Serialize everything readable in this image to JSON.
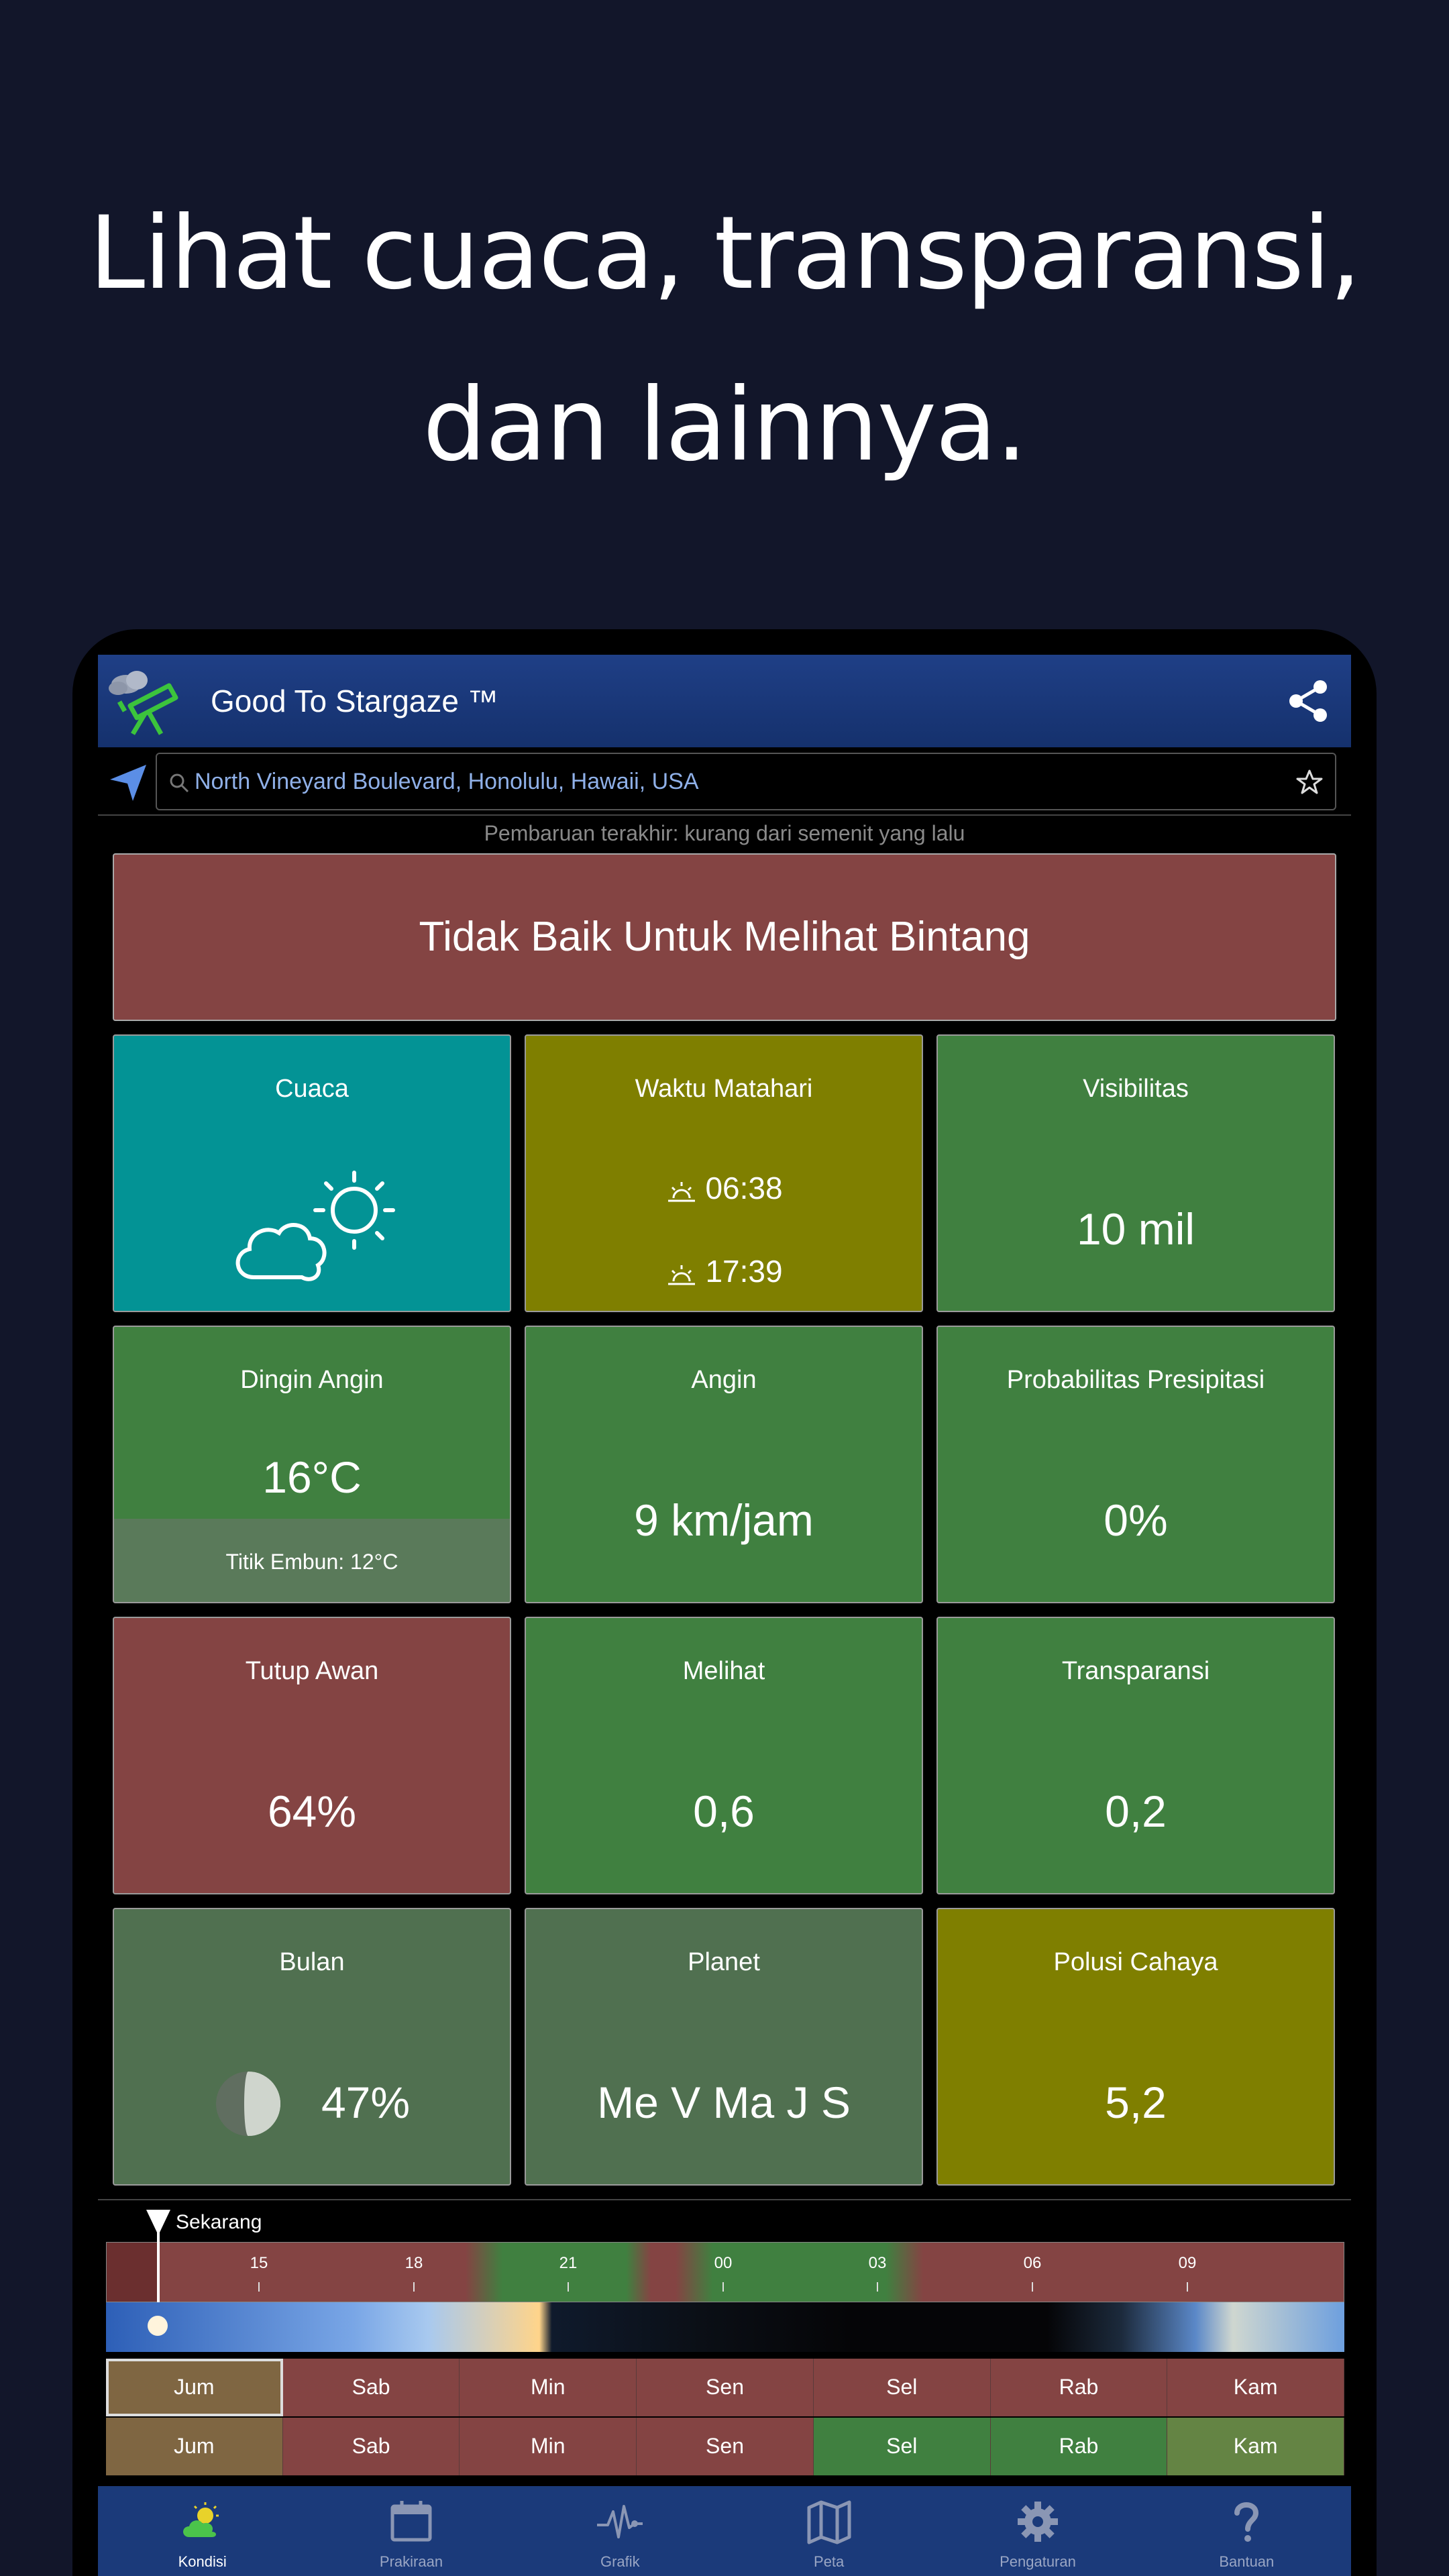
{
  "headline": {
    "line1": "Lihat cuaca, transparansi,",
    "line2": "dan lainnya."
  },
  "appbar": {
    "title": "Good To Stargaze ™"
  },
  "search": {
    "value": "North Vineyard Boulevard, Honolulu, Hawaii, USA"
  },
  "last_update": "Pembaruan terakhir: kurang dari semenit yang lalu",
  "verdict": "Tidak Baik Untuk Melihat Bintang",
  "tiles": {
    "weather": {
      "label": "Cuaca"
    },
    "sun": {
      "label": "Waktu Matahari",
      "sunrise": "06:38",
      "sunset": "17:39"
    },
    "visibility": {
      "label": "Visibilitas",
      "value": "10 mil"
    },
    "windchill": {
      "label": "Dingin Angin",
      "value": "16°C",
      "dewpoint": "Titik Embun: 12°C"
    },
    "wind": {
      "label": "Angin",
      "value": "9 km/jam"
    },
    "precip": {
      "label": "Probabilitas Presipitasi",
      "value": "0%"
    },
    "cloud": {
      "label": "Tutup Awan",
      "value": "64%"
    },
    "seeing": {
      "label": "Melihat",
      "value": "0,6"
    },
    "transparency": {
      "label": "Transparansi",
      "value": "0,2"
    },
    "moon": {
      "label": "Bulan",
      "value": "47%"
    },
    "planets": {
      "label": "Planet",
      "value": "Me V Ma J S"
    },
    "light_pollution": {
      "label": "Polusi Cahaya",
      "value": "5,2"
    }
  },
  "timeline": {
    "now_label": "Sekarang",
    "ticks": [
      "15",
      "18",
      "21",
      "00",
      "03",
      "06",
      "09"
    ]
  },
  "days_row1": [
    "Jum",
    "Sab",
    "Min",
    "Sen",
    "Sel",
    "Rab",
    "Kam"
  ],
  "days_row2": [
    "Jum",
    "Sab",
    "Min",
    "Sen",
    "Sel",
    "Rab",
    "Kam"
  ],
  "nav": [
    {
      "label": "Kondisi",
      "icon": "weather-icon"
    },
    {
      "label": "Prakiraan",
      "icon": "calendar-icon"
    },
    {
      "label": "Grafik",
      "icon": "pulse-chart-icon"
    },
    {
      "label": "Peta",
      "icon": "map-icon"
    },
    {
      "label": "Pengaturan",
      "icon": "gear-icon"
    },
    {
      "label": "Bantuan",
      "icon": "help-icon"
    }
  ]
}
